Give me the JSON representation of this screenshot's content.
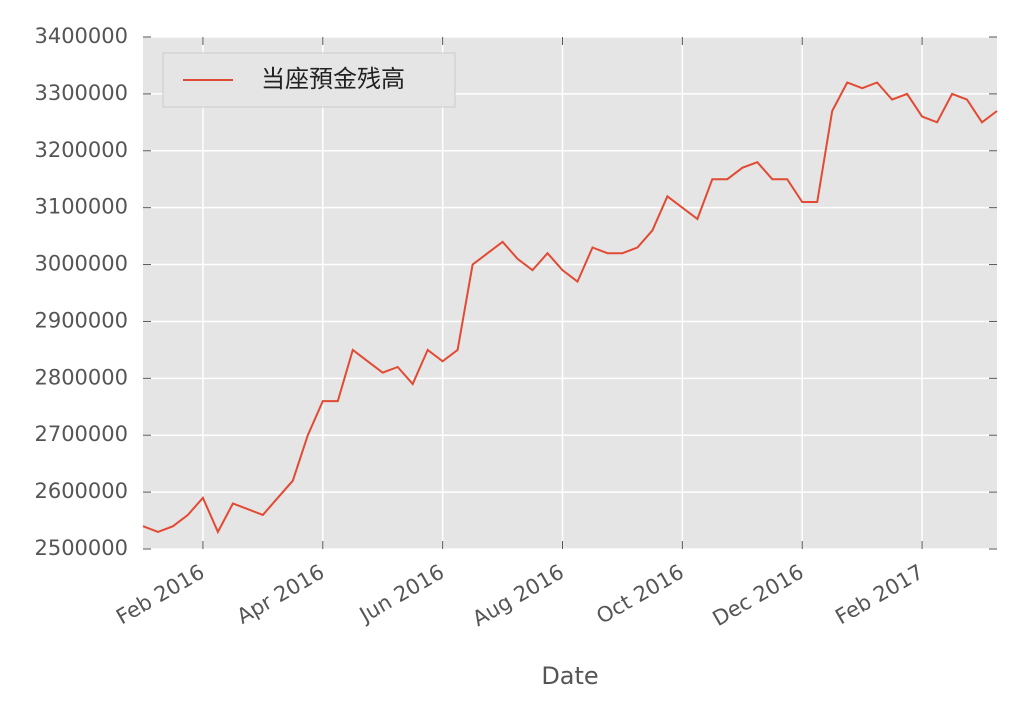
{
  "chart_data": {
    "type": "line",
    "x_label": "Date",
    "categories": [
      null,
      null,
      null,
      null,
      "Feb 2016",
      null,
      null,
      null,
      null,
      null,
      null,
      null,
      "Apr 2016",
      null,
      null,
      null,
      null,
      null,
      null,
      null,
      "Jun 2016",
      null,
      null,
      null,
      null,
      null,
      null,
      null,
      "Aug 2016",
      null,
      null,
      null,
      null,
      null,
      null,
      null,
      "Oct 2016",
      null,
      null,
      null,
      null,
      null,
      null,
      null,
      "Dec 2016",
      null,
      null,
      null,
      null,
      null,
      null,
      null,
      "Feb 2017",
      null,
      null,
      null,
      null,
      null
    ],
    "series": [
      {
        "name": "当座預金残高",
        "color": "#e24a33",
        "values": [
          2540000,
          2530000,
          2540000,
          2560000,
          2590000,
          2530000,
          2580000,
          2570000,
          2560000,
          2590000,
          2620000,
          2700000,
          2760000,
          2760000,
          2850000,
          2830000,
          2810000,
          2820000,
          2790000,
          2850000,
          2830000,
          2850000,
          3000000,
          3020000,
          3040000,
          3010000,
          2990000,
          3020000,
          2990000,
          2970000,
          3030000,
          3020000,
          3020000,
          3030000,
          3060000,
          3120000,
          3100000,
          3080000,
          3150000,
          3150000,
          3170000,
          3180000,
          3150000,
          3150000,
          3110000,
          3110000,
          3270000,
          3320000,
          3310000,
          3320000,
          3290000,
          3300000,
          3260000,
          3250000,
          3300000,
          3290000,
          3250000,
          3270000
        ]
      }
    ],
    "ylim": [
      2500000,
      3400000
    ],
    "yticks": [
      2500000,
      2600000,
      2700000,
      2800000,
      2900000,
      3000000,
      3100000,
      3200000,
      3300000,
      3400000
    ],
    "grid": true,
    "legend": "upper left"
  }
}
